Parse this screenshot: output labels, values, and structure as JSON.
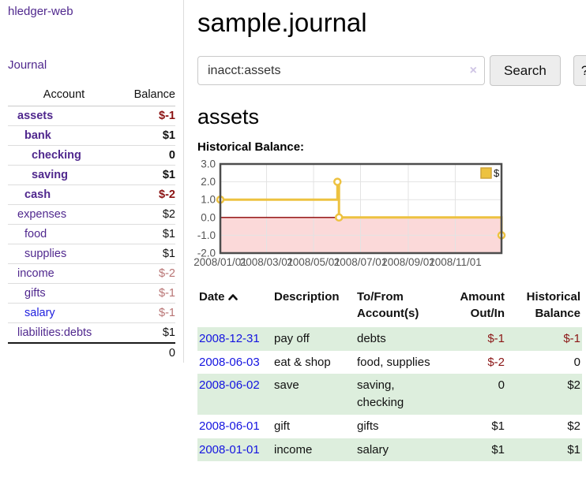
{
  "app": {
    "title": "hledger-web"
  },
  "sidebar": {
    "journal_link": "Journal",
    "table": {
      "account_header": "Account",
      "balance_header": "Balance",
      "rows": [
        {
          "account": "assets",
          "balance": "$-1",
          "depth": 1
        },
        {
          "account": "bank",
          "balance": "$1",
          "depth": 2
        },
        {
          "account": "checking",
          "balance": "0",
          "depth": 3
        },
        {
          "account": "saving",
          "balance": "$1",
          "depth": 3
        },
        {
          "account": "cash",
          "balance": "$-2",
          "depth": 2
        },
        {
          "account": "expenses",
          "balance": "$2",
          "depth": 1
        },
        {
          "account": "food",
          "balance": "$1",
          "depth": 2
        },
        {
          "account": "supplies",
          "balance": "$1",
          "depth": 2
        },
        {
          "account": "income",
          "balance": "$-2",
          "depth": 1
        },
        {
          "account": "gifts",
          "balance": "$-1",
          "depth": 2
        },
        {
          "account": "salary",
          "balance": "$-1",
          "depth": 2
        },
        {
          "account": "liabilities:debts",
          "balance": "$1",
          "depth": 1
        }
      ],
      "total": "0"
    }
  },
  "header": {
    "title": "sample.journal"
  },
  "search": {
    "value": "inacct:assets",
    "clear_icon": "×",
    "button_label": "Search",
    "help_label": "?"
  },
  "account_page": {
    "heading": "assets",
    "chart_label": "Historical Balance:"
  },
  "chart_data": {
    "type": "line",
    "step": true,
    "title": "Historical Balance:",
    "series": [
      {
        "name": "$",
        "color": "#EDC240",
        "points": [
          [
            "2008-01-01",
            1
          ],
          [
            "2008-06-01",
            2
          ],
          [
            "2008-06-03",
            0
          ],
          [
            "2008-12-31",
            -1
          ]
        ]
      }
    ],
    "ylim": [
      -2,
      3
    ],
    "xlim": [
      "2008-01-01",
      "2008-12-31"
    ],
    "ytick_labels": [
      "3.0",
      "2.0",
      "1.0",
      "0.0",
      "-1.0",
      "-2.0"
    ],
    "xtick_labels": [
      "2008/01/01",
      "2008/03/01",
      "2008/05/01",
      "2008/07/01",
      "2008/09/01",
      "2008/11/01"
    ],
    "legend": "$",
    "legend_position": "top-right",
    "grid": true,
    "colors": {
      "negative_region": "#fbd9d9",
      "zero_line": "#8b0000",
      "gridline": "#e3e3e3",
      "border": "#4d4d4d",
      "tick_text": "#545454"
    }
  },
  "register": {
    "columns": [
      {
        "line1": "Date",
        "line2": ""
      },
      {
        "line1": "Description",
        "line2": ""
      },
      {
        "line1": "To/From",
        "line2": "Account(s)"
      },
      {
        "line1": "Amount",
        "line2": "Out/In"
      },
      {
        "line1": "Historical",
        "line2": "Balance"
      }
    ],
    "rows": [
      {
        "date": "2008-12-31",
        "description": "pay off",
        "accounts": "debts",
        "amount": "$-1",
        "balance": "$-1"
      },
      {
        "date": "2008-06-03",
        "description": "eat & shop",
        "accounts": "food, supplies",
        "amount": "$-2",
        "balance": "0"
      },
      {
        "date": "2008-06-02",
        "description": "save",
        "accounts": "saving, checking",
        "amount": "0",
        "balance": "$2"
      },
      {
        "date": "2008-06-01",
        "description": "gift",
        "accounts": "gifts",
        "amount": "$1",
        "balance": "$2"
      },
      {
        "date": "2008-01-01",
        "description": "income",
        "accounts": "salary",
        "amount": "$1",
        "balance": "$1"
      }
    ]
  }
}
